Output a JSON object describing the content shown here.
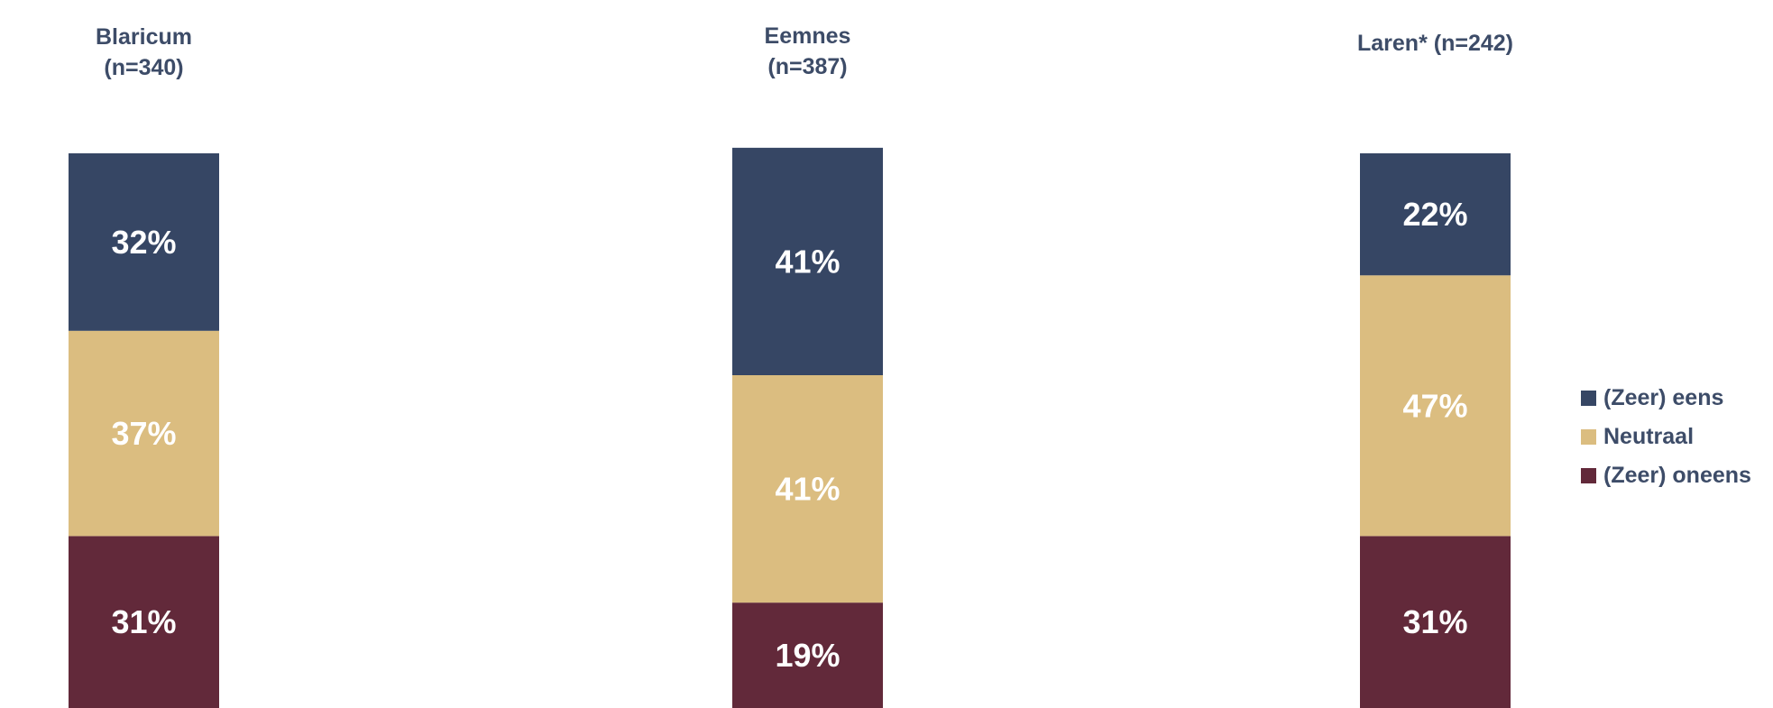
{
  "chart_data": {
    "type": "bar",
    "stacked": true,
    "orientation": "vertical",
    "categories": [
      [
        "Blaricum",
        "(n=340)"
      ],
      [
        "Eemnes",
        "(n=387)"
      ],
      [
        "Laren* (n=242)"
      ]
    ],
    "series": [
      {
        "name": "(Zeer) oneens",
        "color": "#62293a",
        "values": [
          31,
          19,
          31
        ],
        "labels": [
          "31%",
          "19%",
          "31%"
        ]
      },
      {
        "name": "Neutraal",
        "color": "#dbbd80",
        "values": [
          37,
          41,
          47
        ],
        "labels": [
          "37%",
          "41%",
          "47%"
        ]
      },
      {
        "name": "(Zeer) eens",
        "color": "#364664",
        "values": [
          32,
          41,
          22
        ],
        "labels": [
          "32%",
          "41%",
          "22%"
        ]
      }
    ],
    "legend": {
      "position": "right",
      "items": [
        {
          "name": "(Zeer) eens",
          "color": "#364664"
        },
        {
          "name": "Neutraal",
          "color": "#dbbd80"
        },
        {
          "name": "(Zeer) oneens",
          "color": "#62293a"
        }
      ]
    },
    "ylim": [
      0,
      100
    ],
    "grid": false
  }
}
